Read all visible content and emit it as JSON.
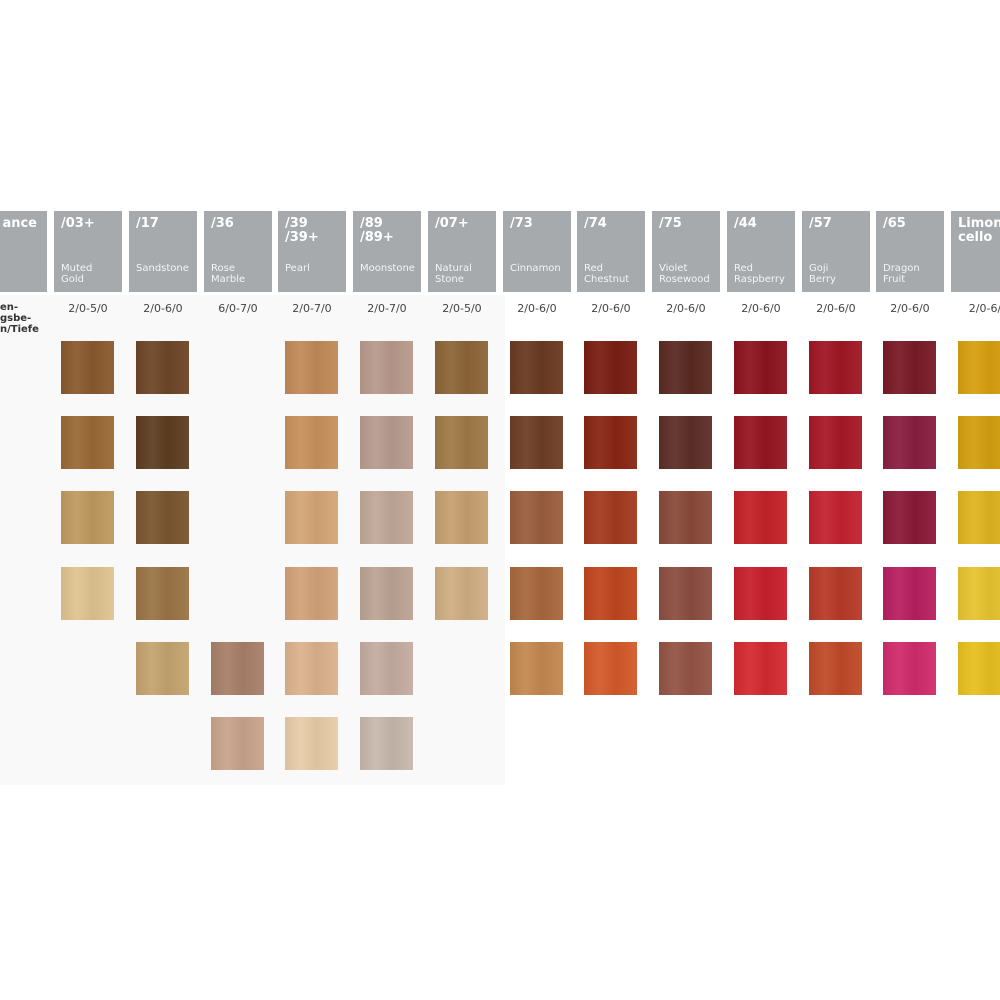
{
  "first_column": {
    "header": "ance",
    "label_lines": [
      "en-",
      "gsbe-",
      "n/Tiefe"
    ]
  },
  "columns": [
    {
      "code": "/03+",
      "name": "Muted\nGold",
      "range": "2/0-5/0",
      "swatches": [
        "#8a5a2e",
        "#9a6a36",
        "#c09a60",
        "#e0c490",
        null,
        null
      ]
    },
    {
      "code": "/17",
      "name": "Sandstone",
      "range": "2/0-6/0",
      "swatches": [
        "#6e4626",
        "#5e3e22",
        "#7a5630",
        "#9a7446",
        "#c4a470",
        null
      ]
    },
    {
      "code": "/36",
      "name": "Rose\nMarble",
      "range": "6/0-7/0",
      "swatches": [
        null,
        null,
        null,
        null,
        "#a8806a",
        "#c8a48c"
      ]
    },
    {
      "code": "/39\n/39+",
      "name": "Pearl",
      "range": "2/0-7/0",
      "swatches": [
        "#c28a58",
        "#c8925c",
        "#d4a676",
        "#d2a27a",
        "#dcb28e",
        "#e8cca8"
      ]
    },
    {
      "code": "/89\n/89+",
      "name": "Moonstone",
      "range": "2/0-7/0",
      "swatches": [
        "#b89a8c",
        "#b89c90",
        "#c0a898",
        "#bca494",
        "#c4aca0",
        "#c8b8ac"
      ]
    },
    {
      "code": "/07+",
      "name": "Natural\nStone",
      "range": "2/0-5/0",
      "swatches": [
        "#8e6638",
        "#a07a48",
        "#c6a070",
        "#d0ae82",
        null,
        null
      ]
    },
    {
      "code": "/73",
      "name": "Cinnamon",
      "range": "2/0-6/0",
      "swatches": [
        "#6a3a22",
        "#6e3e26",
        "#9a5e3e",
        "#a8683e",
        "#c48850",
        null
      ]
    },
    {
      "code": "/74",
      "name": "Red\nChestnut",
      "range": "2/0-6/0",
      "swatches": [
        "#7a1e12",
        "#8a2614",
        "#a43a1e",
        "#c0461e",
        "#d45a2a",
        null
      ]
    },
    {
      "code": "/75",
      "name": "Violet\nRosewood",
      "range": "2/0-6/0",
      "swatches": [
        "#5a2a22",
        "#5e2e28",
        "#8a4a3a",
        "#8c4e40",
        "#945446",
        null
      ]
    },
    {
      "code": "/44",
      "name": "Red\nRaspberry",
      "range": "2/0-6/0",
      "swatches": [
        "#8c1420",
        "#961622",
        "#c42228",
        "#c8202c",
        "#d42a30",
        null
      ]
    },
    {
      "code": "/57",
      "name": "Goji\nBerry",
      "range": "2/0-6/0",
      "swatches": [
        "#a01624",
        "#a81826",
        "#c42230",
        "#b83a28",
        "#c04a28",
        null
      ]
    },
    {
      "code": "/65",
      "name": "Dragon\nFruit",
      "range": "2/0-6/0",
      "swatches": [
        "#7a1a28",
        "#8a1e40",
        "#8a1a38",
        "#b82060",
        "#d02c6c",
        null
      ]
    },
    {
      "code": "Limon-\ncello",
      "name": "",
      "range": "2/0-6/",
      "swatches": [
        "#d8a010",
        "#d4a010",
        "#e0b420",
        "#e8c430",
        "#e8c020",
        null
      ]
    }
  ]
}
